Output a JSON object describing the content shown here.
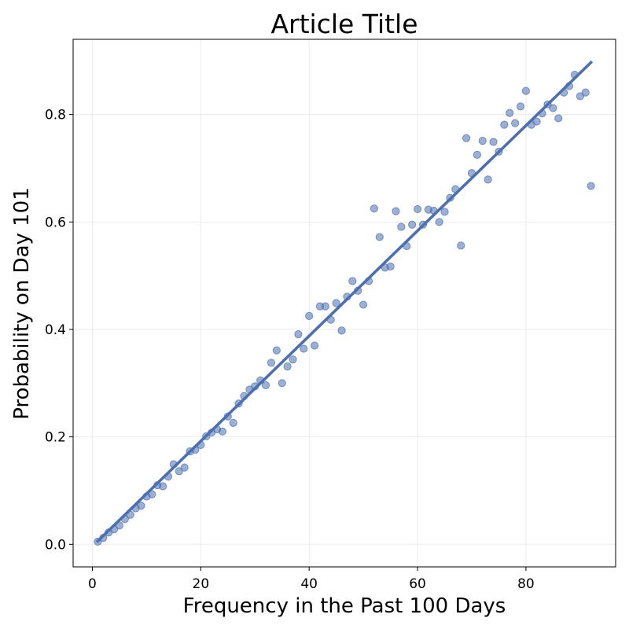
{
  "chart_data": {
    "type": "scatter",
    "title": "Article Title",
    "xlabel": "Frequency in the Past 100 Days",
    "ylabel": "Probability on Day 101",
    "xlim": [
      -3.55,
      96.55
    ],
    "ylim": [
      -0.042,
      0.94
    ],
    "xticks": [
      0,
      20,
      40,
      60,
      80
    ],
    "yticks": [
      0.0,
      0.2,
      0.4,
      0.6,
      0.8
    ],
    "xtick_labels": [
      "0",
      "20",
      "40",
      "60",
      "80"
    ],
    "ytick_labels": [
      "0.0",
      "0.2",
      "0.4",
      "0.6",
      "0.8"
    ],
    "grid": true,
    "colors": {
      "points": "#4c6fae",
      "line": "#4c6fae",
      "grid": "#ebebeb"
    },
    "series": [
      {
        "kind": "points",
        "x": [
          1,
          2,
          3,
          4,
          5,
          6,
          7,
          8,
          9,
          10,
          11,
          12,
          13,
          14,
          15,
          16,
          17,
          18,
          19,
          20,
          21,
          22,
          23,
          24,
          25,
          26,
          27,
          28,
          29,
          30,
          31,
          32,
          33,
          34,
          35,
          36,
          37,
          38,
          39,
          40,
          41,
          42,
          43,
          44,
          45,
          46,
          47,
          48,
          49,
          50,
          51,
          52,
          53,
          54,
          55,
          56,
          57,
          58,
          59,
          60,
          61,
          62,
          63,
          64,
          65,
          66,
          67,
          68,
          69,
          70,
          71,
          72,
          73,
          74,
          75,
          76,
          77,
          78,
          79,
          80,
          81,
          82,
          83,
          84,
          85,
          86,
          87,
          88,
          89,
          90,
          91,
          92
        ],
        "y": [
          0.005,
          0.012,
          0.022,
          0.028,
          0.035,
          0.047,
          0.055,
          0.067,
          0.072,
          0.089,
          0.093,
          0.11,
          0.108,
          0.126,
          0.149,
          0.136,
          0.143,
          0.173,
          0.176,
          0.185,
          0.201,
          0.208,
          0.214,
          0.21,
          0.238,
          0.226,
          0.262,
          0.276,
          0.288,
          0.294,
          0.305,
          0.296,
          0.338,
          0.361,
          0.3,
          0.331,
          0.344,
          0.391,
          0.364,
          0.425,
          0.37,
          0.443,
          0.443,
          0.418,
          0.449,
          0.398,
          0.461,
          0.49,
          0.472,
          0.446,
          0.49,
          0.625,
          0.572,
          0.515,
          0.517,
          0.62,
          0.591,
          0.555,
          0.595,
          0.624,
          0.595,
          0.623,
          0.621,
          0.6,
          0.619,
          0.645,
          0.661,
          0.556,
          0.756,
          0.691,
          0.725,
          0.751,
          0.679,
          0.749,
          0.731,
          0.781,
          0.803,
          0.784,
          0.815,
          0.844,
          0.781,
          0.787,
          0.802,
          0.819,
          0.812,
          0.793,
          0.841,
          0.853,
          0.874,
          0.834,
          0.841,
          0.667
        ]
      },
      {
        "kind": "line",
        "x": [
          1,
          92
        ],
        "y": [
          0.006,
          0.897
        ]
      }
    ]
  }
}
